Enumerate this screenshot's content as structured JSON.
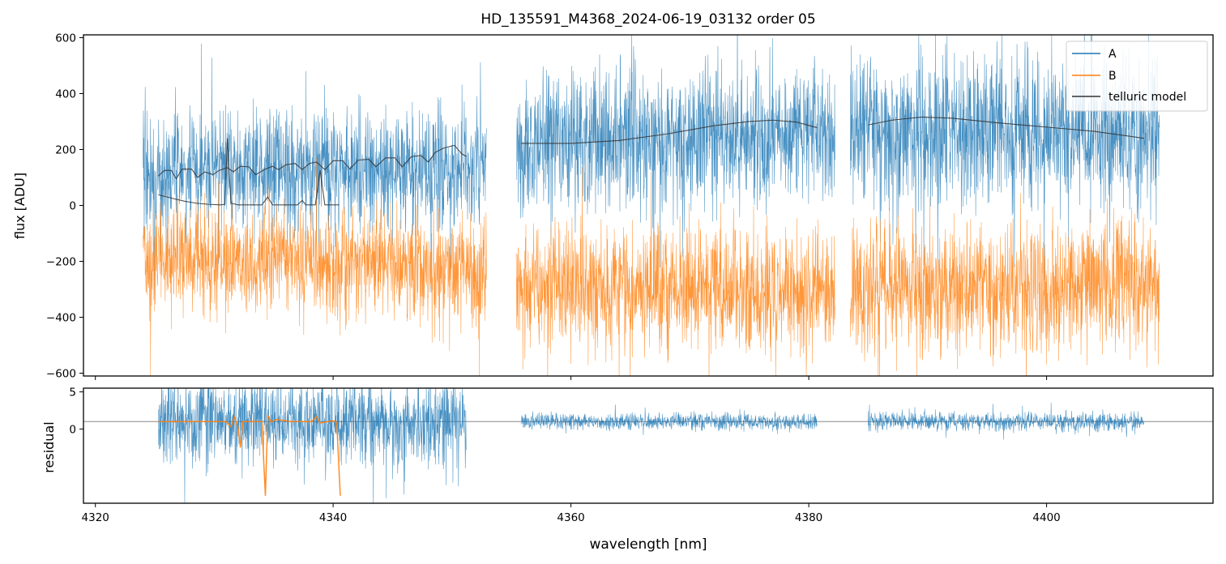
{
  "chart_data": {
    "type": "line",
    "title": "HD_135591_M4368_2024-06-19_03132  order 05",
    "xlabel": "wavelength [nm]",
    "xlim": [
      4319,
      4414
    ],
    "xticks": [
      4320,
      4340,
      4360,
      4380,
      4400
    ],
    "panels": [
      {
        "name": "flux",
        "ylabel": "flux [ADU]",
        "ylim": [
          -610,
          610
        ],
        "yticks": [
          -600,
          -400,
          -200,
          0,
          200,
          400,
          600
        ],
        "legend": {
          "location": "top-right",
          "entries": [
            {
              "label": "A",
              "color": "#1f77b4"
            },
            {
              "label": "B",
              "color": "#ff7f0e"
            },
            {
              "label": "telluric model",
              "color": "#333333"
            }
          ]
        },
        "series": [
          {
            "name": "A",
            "color": "#1f77b4",
            "kind": "noisy",
            "segments": [
              {
                "x0": 4324.0,
                "x1": 4352.9,
                "center": [
                  [
                    4324.0,
                    120
                  ],
                  [
                    4340.0,
                    130
                  ],
                  [
                    4352.9,
                    130
                  ]
                ],
                "spread": 190
              },
              {
                "x0": 4355.4,
                "x1": 4382.2,
                "center": [
                  [
                    4355.4,
                    220
                  ],
                  [
                    4368.0,
                    240
                  ],
                  [
                    4382.2,
                    260
                  ]
                ],
                "spread": 230
              },
              {
                "x0": 4383.5,
                "x1": 4409.5,
                "center": [
                  [
                    4383.5,
                    260
                  ],
                  [
                    4395.0,
                    270
                  ],
                  [
                    4409.5,
                    250
                  ]
                ],
                "spread": 230
              }
            ]
          },
          {
            "name": "B",
            "color": "#ff7f0e",
            "kind": "noisy",
            "segments": [
              {
                "x0": 4324.0,
                "x1": 4352.9,
                "center": [
                  [
                    4324.0,
                    -190
                  ],
                  [
                    4340.0,
                    -200
                  ],
                  [
                    4352.9,
                    -230
                  ]
                ],
                "spread": 170
              },
              {
                "x0": 4355.4,
                "x1": 4382.2,
                "center": [
                  [
                    4355.4,
                    -290
                  ],
                  [
                    4368.0,
                    -300
                  ],
                  [
                    4382.2,
                    -310
                  ]
                ],
                "spread": 200
              },
              {
                "x0": 4383.5,
                "x1": 4409.5,
                "center": [
                  [
                    4383.5,
                    -300
                  ],
                  [
                    4395.0,
                    -300
                  ],
                  [
                    4409.5,
                    -280
                  ]
                ],
                "spread": 200
              }
            ]
          },
          {
            "name": "telluric model A, segment 1",
            "color": "#333333",
            "kind": "line",
            "points": [
              [
                4325.3,
                105
              ],
              [
                4325.8,
                125
              ],
              [
                4326.4,
                125
              ],
              [
                4326.8,
                95
              ],
              [
                4327.3,
                130
              ],
              [
                4328.1,
                130
              ],
              [
                4328.6,
                100
              ],
              [
                4329.2,
                120
              ],
              [
                4329.9,
                110
              ],
              [
                4330.4,
                125
              ],
              [
                4331.1,
                135
              ],
              [
                4331.6,
                120
              ],
              [
                4332.2,
                140
              ],
              [
                4332.9,
                138
              ],
              [
                4333.5,
                110
              ],
              [
                4334.3,
                130
              ],
              [
                4334.9,
                140
              ],
              [
                4335.4,
                128
              ],
              [
                4336.0,
                145
              ],
              [
                4336.8,
                150
              ],
              [
                4337.4,
                128
              ],
              [
                4338.0,
                150
              ],
              [
                4338.6,
                155
              ],
              [
                4339.3,
                128
              ],
              [
                4340.0,
                160
              ],
              [
                4340.8,
                160
              ],
              [
                4341.4,
                130
              ],
              [
                4342.1,
                162
              ],
              [
                4343.0,
                165
              ],
              [
                4343.6,
                138
              ],
              [
                4344.4,
                170
              ],
              [
                4345.2,
                170
              ],
              [
                4345.8,
                138
              ],
              [
                4346.6,
                175
              ],
              [
                4347.4,
                178
              ],
              [
                4348.0,
                155
              ],
              [
                4348.6,
                190
              ],
              [
                4349.3,
                205
              ],
              [
                4350.2,
                215
              ],
              [
                4350.8,
                185
              ],
              [
                4351.2,
                175
              ]
            ]
          },
          {
            "name": "telluric model B, segment 1",
            "color": "#333333",
            "kind": "line",
            "points": [
              [
                4325.3,
                38
              ],
              [
                4326.5,
                25
              ],
              [
                4327.5,
                15
              ],
              [
                4328.5,
                8
              ],
              [
                4329.5,
                4
              ],
              [
                4330.5,
                2
              ],
              [
                4330.9,
                4
              ],
              [
                4331.1,
                240
              ],
              [
                4331.4,
                8
              ],
              [
                4332.0,
                2
              ],
              [
                4334.0,
                2
              ],
              [
                4334.5,
                30
              ],
              [
                4334.9,
                2
              ],
              [
                4337.0,
                2
              ],
              [
                4337.4,
                18
              ],
              [
                4337.7,
                2
              ],
              [
                4338.5,
                2
              ],
              [
                4338.9,
                125
              ],
              [
                4339.3,
                2
              ],
              [
                4340.5,
                2
              ]
            ]
          },
          {
            "name": "telluric model A, segment 2",
            "color": "#333333",
            "kind": "line",
            "points": [
              [
                4355.8,
                222
              ],
              [
                4360.0,
                222
              ],
              [
                4364.0,
                232
              ],
              [
                4368.0,
                255
              ],
              [
                4372.0,
                285
              ],
              [
                4375.0,
                300
              ],
              [
                4377.0,
                305
              ],
              [
                4379.0,
                298
              ],
              [
                4380.7,
                278
              ]
            ]
          },
          {
            "name": "telluric model A, segment 3",
            "color": "#333333",
            "kind": "line",
            "points": [
              [
                4385.0,
                288
              ],
              [
                4387.0,
                305
              ],
              [
                4389.5,
                316
              ],
              [
                4392.0,
                312
              ],
              [
                4396.0,
                295
              ],
              [
                4400.0,
                280
              ],
              [
                4404.0,
                265
              ],
              [
                4408.2,
                240
              ]
            ]
          }
        ]
      },
      {
        "name": "residual",
        "ylabel": "residual",
        "ylim": [
          -10,
          5.5
        ],
        "yticks": [
          0,
          5
        ],
        "reference_line": 1,
        "series": [
          {
            "name": "A",
            "color": "#1f77b4",
            "kind": "noisy",
            "segments": [
              {
                "x0": 4325.3,
                "x1": 4351.2,
                "center": [
                  [
                    4325.3,
                    1
                  ],
                  [
                    4351.2,
                    1
                  ]
                ],
                "spread": 5.2
              },
              {
                "x0": 4355.8,
                "x1": 4380.7,
                "center": [
                  [
                    4355.8,
                    1
                  ],
                  [
                    4380.7,
                    1
                  ]
                ],
                "spread": 1.0
              },
              {
                "x0": 4385.0,
                "x1": 4408.2,
                "center": [
                  [
                    4385.0,
                    1
                  ],
                  [
                    4408.2,
                    1
                  ]
                ],
                "spread": 1.1
              }
            ]
          },
          {
            "name": "B",
            "color": "#ff7f0e",
            "kind": "line",
            "points": [
              [
                4325.3,
                1.0
              ],
              [
                4331.0,
                1.0
              ],
              [
                4331.4,
                0.3
              ],
              [
                4331.7,
                1.6
              ],
              [
                4332.0,
                0.2
              ],
              [
                4332.2,
                -2.5
              ],
              [
                4332.4,
                1.0
              ],
              [
                4334.0,
                1.0
              ],
              [
                4334.3,
                -9.0
              ],
              [
                4334.5,
                1.8
              ],
              [
                4334.8,
                0.9
              ],
              [
                4335.2,
                1.3
              ],
              [
                4336.5,
                1.0
              ],
              [
                4338.2,
                1.0
              ],
              [
                4338.6,
                1.7
              ],
              [
                4338.9,
                0.8
              ],
              [
                4339.5,
                1.0
              ],
              [
                4340.0,
                1.1
              ],
              [
                4340.3,
                0.9
              ],
              [
                4340.6,
                -9.0
              ]
            ]
          }
        ]
      }
    ]
  }
}
